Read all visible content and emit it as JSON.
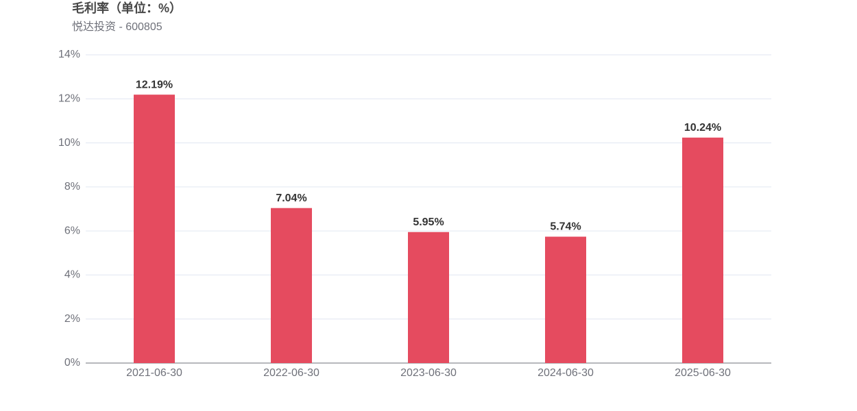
{
  "chart_data": {
    "type": "bar",
    "title": "毛利率（单位：%）",
    "subtitle": "悦达投资 - 600805",
    "categories": [
      "2021-06-30",
      "2022-06-30",
      "2023-06-30",
      "2024-06-30",
      "2025-06-30"
    ],
    "values": [
      12.19,
      7.04,
      5.95,
      5.74,
      10.24
    ],
    "value_labels": [
      "12.19%",
      "7.04%",
      "5.95%",
      "5.74%",
      "10.24%"
    ],
    "color": "#e54b5f",
    "ylim": [
      0,
      14
    ],
    "yticks": [
      {
        "value": 0,
        "label": "0%"
      },
      {
        "value": 2,
        "label": "2%"
      },
      {
        "value": 4,
        "label": "4%"
      },
      {
        "value": 6,
        "label": "6%"
      },
      {
        "value": 8,
        "label": "8%"
      },
      {
        "value": 10,
        "label": "10%"
      },
      {
        "value": 12,
        "label": "12%"
      },
      {
        "value": 14,
        "label": "14%"
      }
    ],
    "grid": true
  }
}
